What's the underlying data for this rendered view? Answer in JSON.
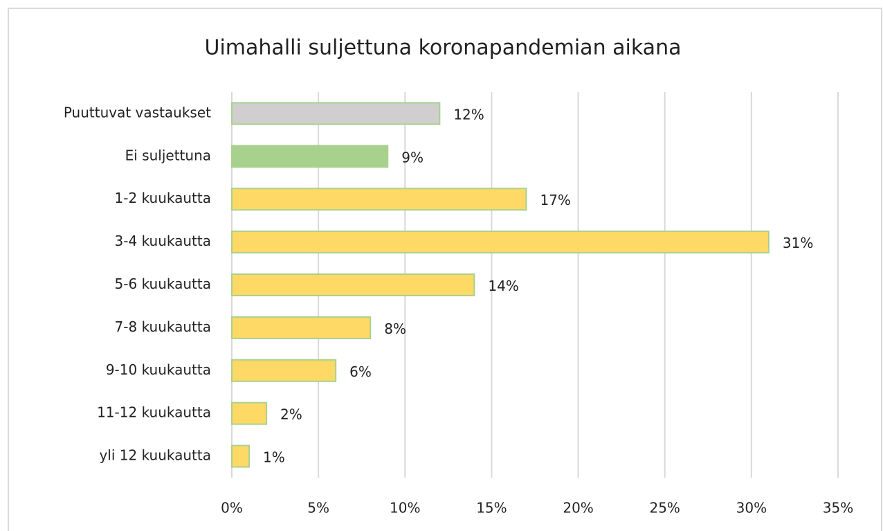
{
  "chart_data": {
    "type": "bar",
    "orientation": "horizontal",
    "title": "Uimahalli suljettuna koronapandemian aikana",
    "categories": [
      "Puuttuvat vastaukset",
      "Ei suljettuna",
      "1-2 kuukautta",
      "3-4 kuukautta",
      "5-6 kuukautta",
      "7-8 kuukautta",
      "9-10 kuukautta",
      "11-12 kuukautta",
      "yli 12 kuukautta"
    ],
    "values": [
      12,
      9,
      17,
      31,
      14,
      8,
      6,
      2,
      1
    ],
    "value_labels": [
      "12%",
      "9%",
      "17%",
      "31%",
      "14%",
      "8%",
      "6%",
      "2%",
      "1%"
    ],
    "colors": [
      "#d0cece",
      "#a9d18e",
      "#ffd966",
      "#ffd966",
      "#ffd966",
      "#ffd966",
      "#ffd966",
      "#ffd966",
      "#ffd966"
    ],
    "xlim": [
      0,
      35
    ],
    "xticks": [
      {
        "value": 0,
        "label": "0%"
      },
      {
        "value": 5,
        "label": "5%"
      },
      {
        "value": 10,
        "label": "10%"
      },
      {
        "value": 15,
        "label": "15%"
      },
      {
        "value": 20,
        "label": "20%"
      },
      {
        "value": 25,
        "label": "25%"
      },
      {
        "value": 30,
        "label": "30%"
      },
      {
        "value": 35,
        "label": "35%"
      }
    ],
    "grid": true
  }
}
